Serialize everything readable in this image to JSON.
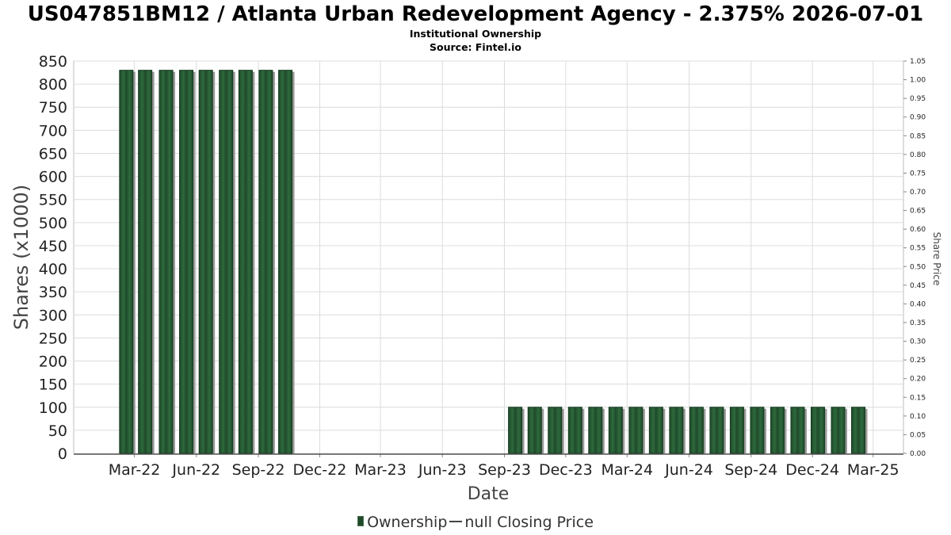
{
  "title": "US047851BM12 / Atlanta Urban Redevelopment Agency - 2.375% 2026-07-01",
  "subtitle": "Institutional Ownership",
  "source": "Source: Fintel.io",
  "legend": {
    "ownership_label": "Ownership",
    "price_label": "null Closing Price"
  },
  "colors": {
    "bar_fill": "#1f4a2b",
    "bar_stripe": "#2e6a3c",
    "bar_shadow": "#9a9a9a",
    "grid": "#dcdcdc"
  },
  "chart_data": {
    "type": "bar",
    "xlabel": "Date",
    "ylabel": "Shares (x1000)",
    "y2label": "Share Price",
    "ylim": [
      0,
      850
    ],
    "y2lim": [
      0,
      1.05
    ],
    "yticks": [
      "0",
      "50",
      "100",
      "150",
      "200",
      "250",
      "300",
      "350",
      "400",
      "450",
      "500",
      "550",
      "600",
      "650",
      "700",
      "750",
      "800",
      "850"
    ],
    "y2ticks": [
      "0.00",
      "0.05",
      "0.10",
      "0.15",
      "0.20",
      "0.25",
      "0.30",
      "0.35",
      "0.40",
      "0.45",
      "0.50",
      "0.55",
      "0.60",
      "0.65",
      "0.70",
      "0.75",
      "0.80",
      "0.85",
      "0.90",
      "0.95",
      "1.00",
      "1.05"
    ],
    "xlim": [
      "2021-12-01",
      "2025-04-15"
    ],
    "xticks": [
      {
        "date": "2022-03-01",
        "label": "Mar-22"
      },
      {
        "date": "2022-06-01",
        "label": "Jun-22"
      },
      {
        "date": "2022-09-01",
        "label": "Sep-22"
      },
      {
        "date": "2022-12-01",
        "label": "Dec-22"
      },
      {
        "date": "2023-03-01",
        "label": "Mar-23"
      },
      {
        "date": "2023-06-01",
        "label": "Jun-23"
      },
      {
        "date": "2023-09-01",
        "label": "Sep-23"
      },
      {
        "date": "2023-12-01",
        "label": "Dec-23"
      },
      {
        "date": "2024-03-01",
        "label": "Mar-24"
      },
      {
        "date": "2024-06-01",
        "label": "Jun-24"
      },
      {
        "date": "2024-09-01",
        "label": "Sep-24"
      },
      {
        "date": "2024-12-01",
        "label": "Dec-24"
      },
      {
        "date": "2025-03-01",
        "label": "Mar-25"
      }
    ],
    "grid": true,
    "legend_position": "bottom",
    "series": [
      {
        "name": "Ownership",
        "points": [
          {
            "x": "2022-02-17",
            "y": 830
          },
          {
            "x": "2022-03-17",
            "y": 830
          },
          {
            "x": "2022-04-17",
            "y": 830
          },
          {
            "x": "2022-05-17",
            "y": 830
          },
          {
            "x": "2022-06-15",
            "y": 830
          },
          {
            "x": "2022-07-15",
            "y": 830
          },
          {
            "x": "2022-08-13",
            "y": 830
          },
          {
            "x": "2022-09-12",
            "y": 830
          },
          {
            "x": "2022-10-11",
            "y": 830
          },
          {
            "x": "2023-09-17",
            "y": 100
          },
          {
            "x": "2023-10-16",
            "y": 100
          },
          {
            "x": "2023-11-15",
            "y": 100
          },
          {
            "x": "2023-12-15",
            "y": 100
          },
          {
            "x": "2024-01-14",
            "y": 100
          },
          {
            "x": "2024-02-13",
            "y": 100
          },
          {
            "x": "2024-03-14",
            "y": 100
          },
          {
            "x": "2024-04-13",
            "y": 100
          },
          {
            "x": "2024-05-13",
            "y": 100
          },
          {
            "x": "2024-06-12",
            "y": 100
          },
          {
            "x": "2024-07-12",
            "y": 100
          },
          {
            "x": "2024-08-11",
            "y": 100
          },
          {
            "x": "2024-09-10",
            "y": 100
          },
          {
            "x": "2024-10-10",
            "y": 100
          },
          {
            "x": "2024-11-09",
            "y": 100
          },
          {
            "x": "2024-12-09",
            "y": 100
          },
          {
            "x": "2025-01-08",
            "y": 100
          },
          {
            "x": "2025-02-07",
            "y": 100
          }
        ]
      }
    ]
  }
}
